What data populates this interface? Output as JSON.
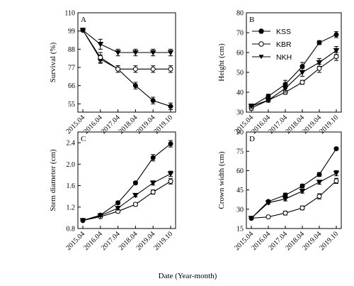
{
  "figure": {
    "x_axis_title": "Date (Year-month)"
  },
  "legend": {
    "entries": [
      "KSS",
      "KBR",
      "NKH"
    ]
  },
  "chart_data": [
    {
      "type": "line",
      "panel": "A",
      "ylabel": "Survival (%)",
      "ylim": [
        50,
        110
      ],
      "yticks": [
        55,
        66,
        77,
        88,
        99,
        110
      ],
      "categories": [
        "2015.04",
        "2016.04",
        "2017.04",
        "2018.04",
        "2019.04",
        "2019.10"
      ],
      "series": [
        {
          "name": "KSS",
          "marker": "filled-circle",
          "values": [
            99.5,
            82,
            76,
            66,
            57,
            53.5
          ],
          "errors": [
            0.5,
            2.5,
            2,
            2,
            2,
            2
          ]
        },
        {
          "name": "KBR",
          "marker": "open-circle",
          "values": [
            99.5,
            83,
            76,
            76,
            76,
            76
          ],
          "errors": [
            0.5,
            3,
            2,
            2,
            2,
            2
          ]
        },
        {
          "name": "NKH",
          "marker": "filled-triangle-down",
          "values": [
            99.5,
            91,
            86,
            86,
            86,
            86
          ],
          "errors": [
            0.5,
            3,
            2,
            2,
            2,
            2
          ]
        }
      ]
    },
    {
      "type": "line",
      "panel": "B",
      "ylabel": "Height (cm)",
      "ylim": [
        30,
        80
      ],
      "yticks": [
        30,
        40,
        50,
        60,
        70,
        80
      ],
      "categories": [
        "2015.04",
        "2016.04",
        "2017.04",
        "2018.04",
        "2019.04",
        "2019.10"
      ],
      "series": [
        {
          "name": "KSS",
          "marker": "filled-circle",
          "values": [
            33,
            38,
            44,
            53,
            65,
            69
          ],
          "errors": [
            1,
            1,
            2,
            2,
            1,
            1.5
          ]
        },
        {
          "name": "KBR",
          "marker": "open-circle",
          "values": [
            32,
            36,
            40,
            45,
            52,
            58
          ],
          "errors": [
            1,
            1,
            1,
            1,
            2,
            2
          ]
        },
        {
          "name": "NKH",
          "marker": "filled-triangle-down",
          "values": [
            33,
            36,
            42,
            50,
            55,
            61
          ],
          "errors": [
            1,
            1,
            2,
            2,
            2,
            2
          ]
        }
      ]
    },
    {
      "type": "line",
      "panel": "C",
      "ylabel": "Stem diameter (cm)",
      "ylim": [
        0.8,
        2.6
      ],
      "yticks": [
        0.8,
        1.2,
        1.6,
        2.0,
        2.4
      ],
      "categories": [
        "2015.04",
        "2016.04",
        "2017.04",
        "2018.04",
        "2019.04",
        "2019.10"
      ],
      "series": [
        {
          "name": "KSS",
          "marker": "filled-circle",
          "values": [
            0.95,
            1.05,
            1.28,
            1.65,
            2.12,
            2.38
          ],
          "errors": [
            0.02,
            0.02,
            0.03,
            0.03,
            0.06,
            0.06
          ]
        },
        {
          "name": "KBR",
          "marker": "open-circle",
          "values": [
            0.95,
            1.02,
            1.12,
            1.25,
            1.48,
            1.68
          ],
          "errors": [
            0.02,
            0.02,
            0.03,
            0.03,
            0.04,
            0.05
          ]
        },
        {
          "name": "NKH",
          "marker": "filled-triangle-down",
          "values": [
            0.95,
            1.04,
            1.18,
            1.42,
            1.65,
            1.82
          ],
          "errors": [
            0.02,
            0.02,
            0.03,
            0.03,
            0.04,
            0.05
          ]
        }
      ]
    },
    {
      "type": "line",
      "panel": "D",
      "ylabel": "Crown width (cm)",
      "ylim": [
        15,
        90
      ],
      "yticks": [
        15,
        30,
        45,
        60,
        75,
        90
      ],
      "categories": [
        "2015.04",
        "2016.04",
        "2017.04",
        "2018.04",
        "2019.04",
        "2019.10"
      ],
      "series": [
        {
          "name": "KSS",
          "marker": "filled-circle",
          "values": [
            23,
            36,
            41,
            48,
            57,
            77
          ],
          "errors": [
            1,
            1,
            1.5,
            1.5,
            1.5,
            1
          ]
        },
        {
          "name": "KBR",
          "marker": "open-circle",
          "values": [
            23,
            24,
            27,
            31,
            40,
            52
          ],
          "errors": [
            1,
            1,
            1.5,
            1.5,
            2,
            2
          ]
        },
        {
          "name": "NKH",
          "marker": "filled-triangle-down",
          "values": [
            23,
            35,
            38,
            44,
            51,
            58
          ],
          "errors": [
            1,
            1,
            1.5,
            1.5,
            1.5,
            2
          ]
        }
      ]
    }
  ]
}
